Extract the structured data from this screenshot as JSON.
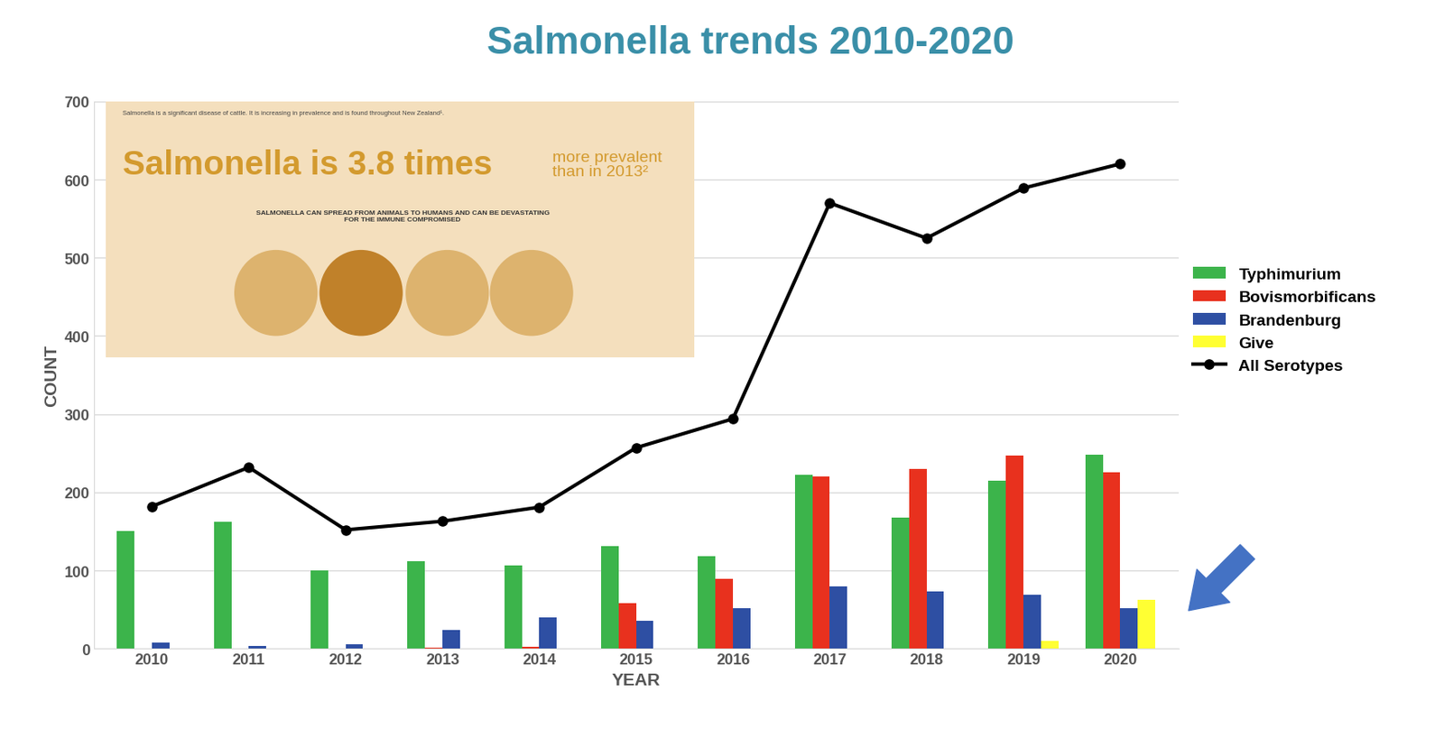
{
  "chart_data": {
    "type": "bar",
    "title": "Salmonella trends 2010-2020",
    "x_label": "YEAR",
    "y_label": "COUNT",
    "categories": [
      "2010",
      "2011",
      "2012",
      "2013",
      "2014",
      "2015",
      "2016",
      "2017",
      "2018",
      "2019",
      "2020"
    ],
    "series": [
      {
        "name": "Typhimurium",
        "color": "#3cb44b",
        "type": "bar",
        "values": [
          150,
          162,
          100,
          112,
          106,
          131,
          118,
          222,
          168,
          215,
          248
        ]
      },
      {
        "name": "Bovismorbificans",
        "color": "#e8311e",
        "type": "bar",
        "values": [
          0,
          0,
          0,
          1,
          2,
          58,
          89,
          220,
          230,
          247,
          226
        ]
      },
      {
        "name": "Brandenburg",
        "color": "#2e4fa3",
        "type": "bar",
        "values": [
          8,
          4,
          6,
          24,
          40,
          36,
          52,
          80,
          73,
          69,
          52
        ]
      },
      {
        "name": "Give",
        "color": "#ffff33",
        "type": "bar",
        "values": [
          0,
          0,
          0,
          0,
          0,
          0,
          0,
          0,
          0,
          10,
          63
        ]
      },
      {
        "name": "All Serotypes",
        "color": "#000000",
        "type": "line",
        "marker": "circle",
        "line_style": "solid",
        "values": [
          182,
          232,
          152,
          163,
          181,
          257,
          294,
          570,
          525,
          589,
          620
        ]
      }
    ],
    "ylim": [
      0,
      700
    ],
    "yticks": [
      0,
      100,
      200,
      300,
      400,
      500,
      600,
      700
    ],
    "grid": true,
    "legend": "center left",
    "annotations": [
      "Salmonella is a significant disease of cattle. It is increasing in prevalence and is found throughout New Zealand¹.",
      "Salmonella is 3.8 times",
      "more prevalent\nthan in 2013²",
      "SALMONELLA CAN SPREAD FROM ANIMALS TO HUMANS AND CAN BE DEVASTATING\nFOR THE IMMUNE COMPROMISED"
    ]
  }
}
